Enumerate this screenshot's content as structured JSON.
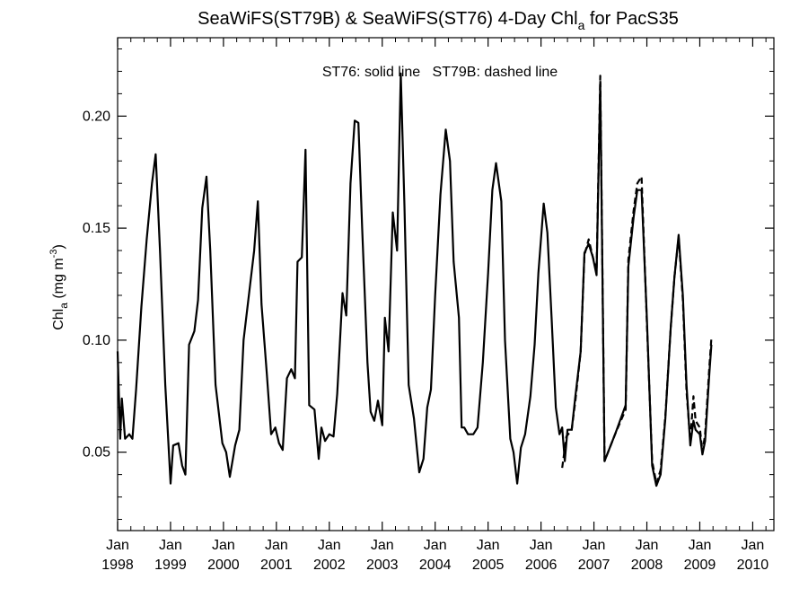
{
  "chart_data": {
    "type": "line",
    "title": {
      "main": "SeaWiFS(ST79B) & SeaWiFS(ST76) 4-Day Chl",
      "sub": "a",
      "tail": " for PacS35"
    },
    "annotation": "ST76: solid line   ST79B: dashed line",
    "ylabel": {
      "main": "Chl",
      "sub": "a",
      "units": " (mg m",
      "sup": "-3",
      "close": ")"
    },
    "xlim": [
      1998.0,
      2010.4
    ],
    "ylim": [
      0.015,
      0.235
    ],
    "yticks": [
      0.05,
      0.1,
      0.15,
      0.2
    ],
    "ytick_labels": [
      "0.05",
      "0.10",
      "0.15",
      "0.20"
    ],
    "xticks": [
      1998,
      1999,
      2000,
      2001,
      2002,
      2003,
      2004,
      2005,
      2006,
      2007,
      2008,
      2009,
      2010
    ],
    "xtick_labels_top": [
      "Jan",
      "Jan",
      "Jan",
      "Jan",
      "Jan",
      "Jan",
      "Jan",
      "Jan",
      "Jan",
      "Jan",
      "Jan",
      "Jan",
      "Jan"
    ],
    "xtick_labels_bottom": [
      "1998",
      "1999",
      "2000",
      "2001",
      "2002",
      "2003",
      "2004",
      "2005",
      "2006",
      "2007",
      "2008",
      "2009",
      "2010"
    ],
    "grid": false,
    "series": [
      {
        "name": "ST76",
        "style": "solid",
        "color": "#000000",
        "points": [
          [
            1998.0,
            0.095
          ],
          [
            1998.05,
            0.056
          ],
          [
            1998.08,
            0.074
          ],
          [
            1998.14,
            0.056
          ],
          [
            1998.22,
            0.058
          ],
          [
            1998.28,
            0.056
          ],
          [
            1998.35,
            0.078
          ],
          [
            1998.45,
            0.115
          ],
          [
            1998.55,
            0.145
          ],
          [
            1998.65,
            0.17
          ],
          [
            1998.72,
            0.183
          ],
          [
            1998.8,
            0.14
          ],
          [
            1998.9,
            0.08
          ],
          [
            1999.0,
            0.036
          ],
          [
            1999.05,
            0.053
          ],
          [
            1999.15,
            0.054
          ],
          [
            1999.22,
            0.044
          ],
          [
            1999.28,
            0.04
          ],
          [
            1999.35,
            0.098
          ],
          [
            1999.45,
            0.104
          ],
          [
            1999.52,
            0.118
          ],
          [
            1999.6,
            0.159
          ],
          [
            1999.68,
            0.173
          ],
          [
            1999.75,
            0.14
          ],
          [
            1999.85,
            0.08
          ],
          [
            1999.98,
            0.054
          ],
          [
            2000.05,
            0.05
          ],
          [
            2000.12,
            0.039
          ],
          [
            2000.22,
            0.053
          ],
          [
            2000.3,
            0.06
          ],
          [
            2000.38,
            0.1
          ],
          [
            2000.48,
            0.12
          ],
          [
            2000.58,
            0.14
          ],
          [
            2000.65,
            0.162
          ],
          [
            2000.72,
            0.116
          ],
          [
            2000.82,
            0.085
          ],
          [
            2000.9,
            0.058
          ],
          [
            2000.98,
            0.061
          ],
          [
            2001.05,
            0.054
          ],
          [
            2001.12,
            0.051
          ],
          [
            2001.2,
            0.083
          ],
          [
            2001.28,
            0.087
          ],
          [
            2001.35,
            0.083
          ],
          [
            2001.4,
            0.135
          ],
          [
            2001.48,
            0.137
          ],
          [
            2001.55,
            0.185
          ],
          [
            2001.62,
            0.071
          ],
          [
            2001.72,
            0.069
          ],
          [
            2001.8,
            0.047
          ],
          [
            2001.85,
            0.061
          ],
          [
            2001.92,
            0.055
          ],
          [
            2002.0,
            0.058
          ],
          [
            2002.08,
            0.057
          ],
          [
            2002.15,
            0.076
          ],
          [
            2002.25,
            0.121
          ],
          [
            2002.32,
            0.111
          ],
          [
            2002.4,
            0.17
          ],
          [
            2002.48,
            0.198
          ],
          [
            2002.55,
            0.197
          ],
          [
            2002.62,
            0.15
          ],
          [
            2002.72,
            0.09
          ],
          [
            2002.78,
            0.068
          ],
          [
            2002.85,
            0.064
          ],
          [
            2002.92,
            0.073
          ],
          [
            2003.0,
            0.062
          ],
          [
            2003.05,
            0.11
          ],
          [
            2003.12,
            0.095
          ],
          [
            2003.2,
            0.157
          ],
          [
            2003.28,
            0.14
          ],
          [
            2003.35,
            0.219
          ],
          [
            2003.42,
            0.16
          ],
          [
            2003.5,
            0.08
          ],
          [
            2003.6,
            0.065
          ],
          [
            2003.7,
            0.041
          ],
          [
            2003.78,
            0.047
          ],
          [
            2003.85,
            0.07
          ],
          [
            2003.92,
            0.078
          ],
          [
            2004.0,
            0.12
          ],
          [
            2004.1,
            0.165
          ],
          [
            2004.2,
            0.194
          ],
          [
            2004.28,
            0.18
          ],
          [
            2004.35,
            0.135
          ],
          [
            2004.45,
            0.11
          ],
          [
            2004.5,
            0.061
          ],
          [
            2004.55,
            0.061
          ],
          [
            2004.62,
            0.058
          ],
          [
            2004.72,
            0.058
          ],
          [
            2004.8,
            0.061
          ],
          [
            2004.9,
            0.09
          ],
          [
            2005.0,
            0.13
          ],
          [
            2005.08,
            0.167
          ],
          [
            2005.15,
            0.179
          ],
          [
            2005.25,
            0.162
          ],
          [
            2005.32,
            0.1
          ],
          [
            2005.42,
            0.056
          ],
          [
            2005.48,
            0.05
          ],
          [
            2005.55,
            0.036
          ],
          [
            2005.62,
            0.052
          ],
          [
            2005.7,
            0.058
          ],
          [
            2005.8,
            0.075
          ],
          [
            2005.88,
            0.098
          ],
          [
            2005.95,
            0.13
          ],
          [
            2006.05,
            0.161
          ],
          [
            2006.12,
            0.148
          ],
          [
            2006.2,
            0.11
          ],
          [
            2006.28,
            0.07
          ],
          [
            2006.35,
            0.058
          ],
          [
            2006.4,
            0.061
          ],
          [
            2006.45,
            0.046
          ],
          [
            2006.5,
            0.06
          ],
          [
            2006.58,
            0.06
          ],
          [
            2006.65,
            0.075
          ],
          [
            2006.75,
            0.095
          ],
          [
            2006.82,
            0.139
          ],
          [
            2006.9,
            0.143
          ],
          [
            2006.98,
            0.137
          ],
          [
            2007.05,
            0.129
          ],
          [
            2007.12,
            0.215
          ],
          [
            2007.2,
            0.046
          ],
          [
            2007.4,
            0.058
          ],
          [
            2007.6,
            0.071
          ],
          [
            2007.65,
            0.133
          ],
          [
            2007.75,
            0.155
          ],
          [
            2007.82,
            0.167
          ],
          [
            2007.9,
            0.167
          ],
          [
            2008.0,
            0.11
          ],
          [
            2008.1,
            0.044
          ],
          [
            2008.18,
            0.035
          ],
          [
            2008.26,
            0.04
          ],
          [
            2008.35,
            0.065
          ],
          [
            2008.45,
            0.105
          ],
          [
            2008.52,
            0.128
          ],
          [
            2008.6,
            0.147
          ],
          [
            2008.68,
            0.12
          ],
          [
            2008.75,
            0.08
          ],
          [
            2008.82,
            0.053
          ],
          [
            2008.88,
            0.064
          ],
          [
            2008.92,
            0.06
          ],
          [
            2009.0,
            0.058
          ],
          [
            2009.05,
            0.049
          ],
          [
            2009.1,
            0.055
          ],
          [
            2009.18,
            0.085
          ],
          [
            2009.22,
            0.098
          ]
        ]
      },
      {
        "name": "ST79B",
        "style": "dashed",
        "color": "#000000",
        "points": [
          [
            2006.4,
            0.043
          ],
          [
            2006.48,
            0.057
          ],
          [
            2006.58,
            0.06
          ],
          [
            2006.65,
            0.073
          ],
          [
            2006.75,
            0.095
          ],
          [
            2006.82,
            0.138
          ],
          [
            2006.9,
            0.145
          ],
          [
            2006.98,
            0.137
          ],
          [
            2007.05,
            0.131
          ],
          [
            2007.12,
            0.218
          ],
          [
            2007.2,
            0.046
          ],
          [
            2007.4,
            0.058
          ],
          [
            2007.6,
            0.069
          ],
          [
            2007.65,
            0.136
          ],
          [
            2007.75,
            0.158
          ],
          [
            2007.82,
            0.17
          ],
          [
            2007.9,
            0.173
          ],
          [
            2008.0,
            0.108
          ],
          [
            2008.1,
            0.046
          ],
          [
            2008.18,
            0.036
          ],
          [
            2008.26,
            0.042
          ],
          [
            2008.35,
            0.066
          ],
          [
            2008.45,
            0.105
          ],
          [
            2008.52,
            0.128
          ],
          [
            2008.6,
            0.146
          ],
          [
            2008.68,
            0.118
          ],
          [
            2008.75,
            0.077
          ],
          [
            2008.82,
            0.055
          ],
          [
            2008.88,
            0.075
          ],
          [
            2008.92,
            0.064
          ],
          [
            2009.0,
            0.061
          ],
          [
            2009.05,
            0.05
          ],
          [
            2009.1,
            0.058
          ],
          [
            2009.18,
            0.088
          ],
          [
            2009.22,
            0.101
          ]
        ]
      }
    ]
  }
}
